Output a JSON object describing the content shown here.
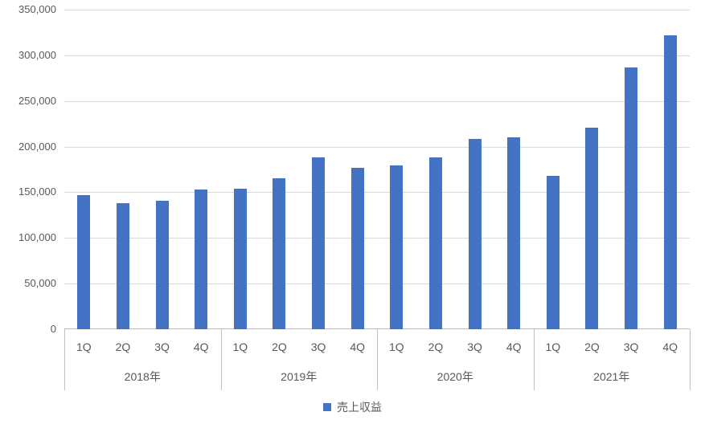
{
  "chart_data": {
    "type": "bar",
    "title": "",
    "legend_label": "売上収益",
    "legend_position": "bottom",
    "bar_color": "#4472C4",
    "grid": true,
    "ylim": [
      0,
      350000
    ],
    "ytick_step": 50000,
    "yticklabels": [
      "0",
      "50,000",
      "100,000",
      "150,000",
      "200,000",
      "250,000",
      "300,000",
      "350,000"
    ],
    "quarter_labels": [
      "1Q",
      "2Q",
      "3Q",
      "4Q"
    ],
    "groups": [
      {
        "label": "2018年",
        "values": [
          147000,
          138000,
          141000,
          153000
        ]
      },
      {
        "label": "2019年",
        "values": [
          154000,
          165000,
          188000,
          177000
        ]
      },
      {
        "label": "2020年",
        "values": [
          179000,
          188000,
          208000,
          210000
        ]
      },
      {
        "label": "2021年",
        "values": [
          168000,
          221000,
          287000,
          322000
        ]
      }
    ],
    "colors": {
      "gridline": "#D9D9D9",
      "axis_line": "#BFBFBF",
      "text": "#595959"
    }
  },
  "legend": {
    "label": "売上収益"
  }
}
